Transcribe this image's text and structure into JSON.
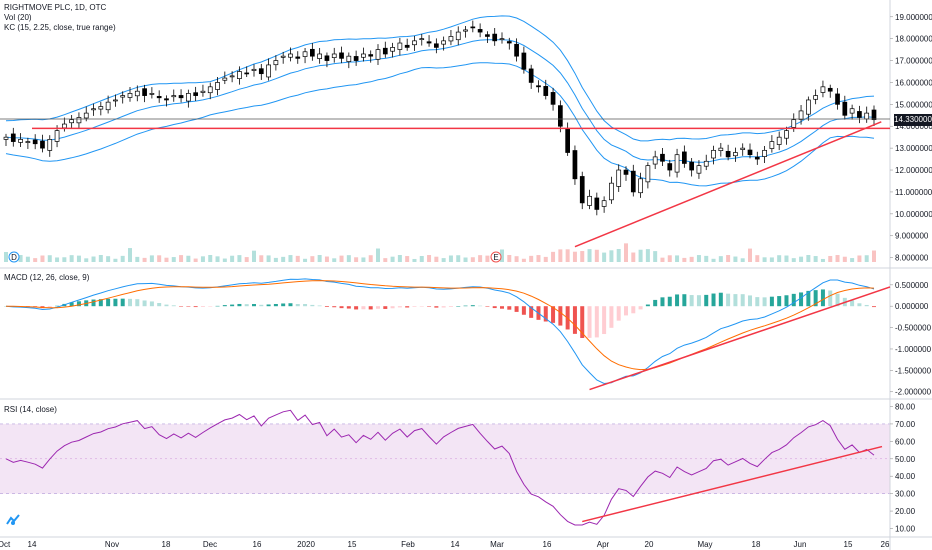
{
  "legend": {
    "title": "RIGHTMOVE PLC, 1D, OTC",
    "vol": "Vol (20)",
    "kc": "KC (15, 2.25, close, true range)",
    "macd": "MACD (12, 26, close, 9)",
    "rsi": "RSI (14, close)"
  },
  "price_tag": "14.330000",
  "event_markers": [
    "D",
    "E"
  ],
  "colors": {
    "up": "#26a69a",
    "down": "#ef5350",
    "kc": "#2196f3",
    "support": "#f23645",
    "macd": "#2196f3",
    "signal": "#ff6d00",
    "rsi": "#9c27b0",
    "rsi_band": "#f3e5f5"
  },
  "chart_data": [
    {
      "type": "candlestick",
      "panel": "price",
      "x_ticks": [
        "Oct",
        "14",
        "Nov",
        "18",
        "Dec",
        "16",
        "2020",
        "15",
        "Feb",
        "14",
        "Mar",
        "16",
        "Apr",
        "20",
        "May",
        "18",
        "Jun",
        "15",
        "26"
      ],
      "y_ticks": [
        19,
        18,
        17,
        16,
        15,
        14,
        13,
        12,
        11,
        10,
        9,
        8
      ],
      "ylim": [
        7.8,
        19.4
      ],
      "close": [
        13.5,
        13.3,
        13.4,
        13.3,
        13.2,
        13.0,
        13.4,
        13.8,
        14.1,
        14.3,
        14.4,
        14.6,
        14.8,
        14.9,
        15.1,
        15.2,
        15.4,
        15.5,
        15.6,
        15.4,
        15.5,
        15.3,
        15.2,
        15.4,
        15.3,
        15.5,
        15.4,
        15.6,
        15.8,
        16.0,
        16.2,
        16.3,
        16.5,
        16.4,
        16.6,
        16.4,
        16.8,
        17.0,
        17.2,
        17.3,
        17.1,
        17.4,
        17.2,
        17.3,
        17.0,
        17.3,
        17.1,
        17.2,
        17.0,
        17.3,
        17.2,
        17.5,
        17.3,
        17.6,
        17.8,
        17.6,
        17.9,
        18.0,
        17.8,
        17.6,
        17.9,
        18.1,
        18.3,
        18.4,
        18.5,
        18.3,
        18.1,
        17.9,
        18.0,
        17.8,
        17.2,
        16.6,
        16.0,
        15.8,
        15.4,
        15.0,
        14.0,
        12.8,
        11.6,
        10.5,
        10.8,
        10.2,
        10.6,
        11.4,
        12.0,
        11.8,
        11.0,
        11.6,
        12.2,
        12.6,
        12.4,
        12.0,
        12.7,
        12.3,
        12.0,
        12.2,
        12.4,
        12.9,
        13.0,
        12.6,
        12.8,
        13.0,
        12.7,
        12.5,
        12.9,
        13.3,
        13.5,
        13.8,
        14.3,
        14.7,
        15.2,
        15.4,
        15.8,
        15.6,
        15.0,
        14.5,
        14.8,
        14.4,
        14.6,
        14.3
      ],
      "series_extra": "Keltner channel bands and volume bars shown"
    },
    {
      "type": "line",
      "panel": "macd",
      "y_ticks": [
        0.5,
        0.0,
        -0.5,
        -1.0,
        -1.5,
        -2.0
      ],
      "ylim": [
        -2.1,
        0.8
      ]
    },
    {
      "type": "line",
      "panel": "rsi",
      "y_ticks": [
        80,
        70,
        60,
        50,
        40,
        30,
        20,
        10
      ],
      "ylim": [
        8,
        82
      ],
      "band": [
        30,
        70
      ]
    }
  ]
}
